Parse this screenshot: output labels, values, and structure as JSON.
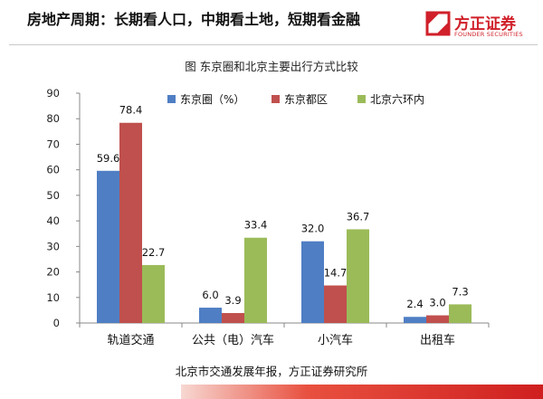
{
  "slide": {
    "title": "房地产周期：长期看人口，中期看土地，短期看金融",
    "source": "北京市交通发展年报，方正证券研究所"
  },
  "logo": {
    "name_cn": "方正证券",
    "name_en": "FOUNDER SECURITIES",
    "icon": "founder-logo-icon",
    "color": "#d0202a"
  },
  "chart_data": {
    "type": "bar",
    "title": "图   东京圈和北京主要出行方式比较",
    "categories": [
      "轨道交通",
      "公共（电）汽车",
      "小汽车",
      "出租车"
    ],
    "series": [
      {
        "name": "东京圈（%）",
        "color": "#4f7ec4",
        "values": [
          59.6,
          6.0,
          32.0,
          2.4
        ],
        "labels": [
          "59.6",
          "6.0",
          "32.0",
          "2.4"
        ]
      },
      {
        "name": "东京都区",
        "color": "#c0504d",
        "values": [
          78.4,
          3.9,
          14.7,
          3.0
        ],
        "labels": [
          "78.4",
          "3.9",
          "14.7",
          "3.0"
        ]
      },
      {
        "name": "北京六环内",
        "color": "#9bbb59",
        "values": [
          22.7,
          33.4,
          36.7,
          7.3
        ],
        "labels": [
          "22.7",
          "33.4",
          "36.7",
          "7.3"
        ]
      }
    ],
    "ylim": [
      0,
      90
    ],
    "yticks": [
      0,
      10,
      20,
      30,
      40,
      50,
      60,
      70,
      80,
      90
    ],
    "grid": false,
    "legend": "top-right"
  }
}
